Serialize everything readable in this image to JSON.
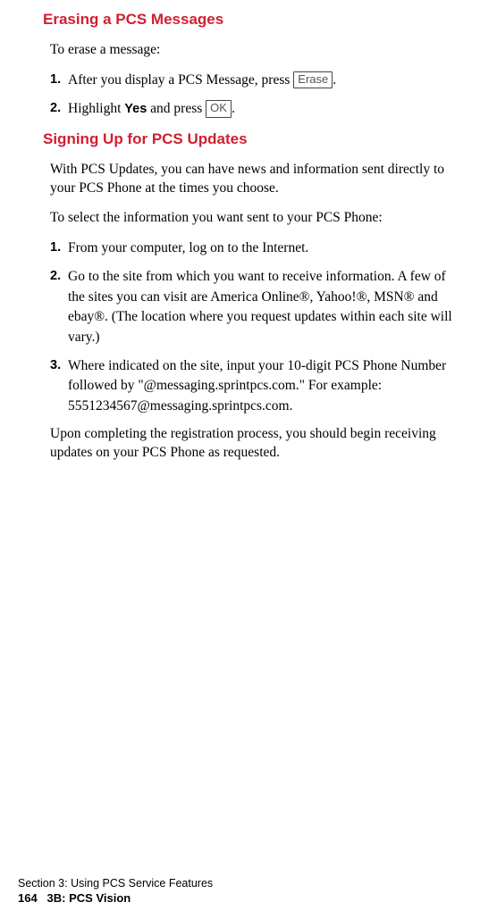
{
  "headings": {
    "erase": "Erasing a PCS Messages",
    "signup": "Signing Up for PCS Updates"
  },
  "erase": {
    "intro": "To erase a message:",
    "items": [
      {
        "num": "1.",
        "before": "After you display a PCS Message, press ",
        "key": "Erase",
        "after": "."
      },
      {
        "num": "2.",
        "before": "Highlight ",
        "bold": "Yes",
        "mid": " and press ",
        "key": "OK",
        "after": "."
      }
    ]
  },
  "signup": {
    "para1": "With PCS Updates, you can have news and information sent directly to your PCS Phone at the times you choose.",
    "para2": "To select the information you want sent to your PCS Phone:",
    "items": [
      {
        "num": "1.",
        "text": "From your computer, log on to the Internet."
      },
      {
        "num": "2.",
        "text": "Go to the site from which you want to receive information. A few of the sites you can visit are America Online®, Yahoo!®, MSN® and ebay®. (The location where you request updates within each site will vary.)"
      },
      {
        "num": "3.",
        "text": "Where indicated on the site, input your 10-digit PCS Phone Number followed by \"@messaging.sprintpcs.com.\" For example: 5551234567@messaging.sprintpcs.com."
      }
    ],
    "closing": "Upon completing the registration process, you should begin receiving updates on your PCS Phone as requested."
  },
  "footer": {
    "line1": "Section 3: Using PCS Service Features",
    "pagenum": "164",
    "line2": "3B: PCS Vision"
  }
}
